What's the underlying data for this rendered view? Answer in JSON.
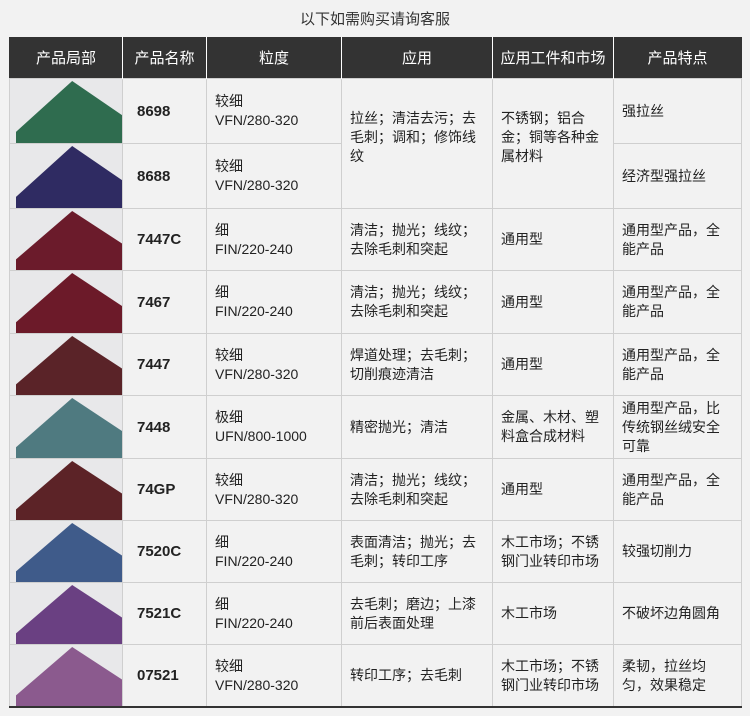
{
  "title": "以下如需购买请询客服",
  "headers": [
    "产品局部",
    "产品名称",
    "粒度",
    "应用",
    "应用工件和市场",
    "产品特点"
  ],
  "rows": [
    {
      "name": "8698",
      "grit1": "较细",
      "grit2": "VFN/280-320",
      "app": "拉丝；清洁去污；去毛刺；调和；修饰线纹",
      "market": "不锈钢；铝合金；铜等各种金属材料",
      "feature": "强拉丝",
      "color": "#2f6c4f"
    },
    {
      "name": "8688",
      "grit1": "较细",
      "grit2": "VFN/280-320",
      "feature": "经济型强拉丝",
      "color": "#2f2b62"
    },
    {
      "name": "7447C",
      "grit1": "细",
      "grit2": "FIN/220-240",
      "app": "清洁；抛光；线纹；去除毛刺和突起",
      "market": "通用型",
      "feature": "通用型产品，全能产品",
      "color": "#6b1b2b"
    },
    {
      "name": "7467",
      "grit1": "细",
      "grit2": "FIN/220-240",
      "app": "清洁；抛光；线纹；去除毛刺和突起",
      "market": "通用型",
      "feature": "通用型产品，全能产品",
      "color": "#6c1a29"
    },
    {
      "name": "7447",
      "grit1": "较细",
      "grit2": "VFN/280-320",
      "app": "焊道处理；去毛刺；切削痕迹清洁",
      "market": "通用型",
      "feature": "通用型产品，全能产品",
      "color": "#5a2328"
    },
    {
      "name": "7448",
      "grit1": "极细",
      "grit2": "UFN/800-1000",
      "app": "精密抛光；清洁",
      "market": "金属、木材、塑料盒合成材料",
      "feature": "通用型产品，比传统钢丝绒安全可靠",
      "color": "#4f7a80"
    },
    {
      "name": "74GP",
      "grit1": "较细",
      "grit2": "VFN/280-320",
      "app": "清洁；抛光；线纹；去除毛刺和突起",
      "market": "通用型",
      "feature": "通用型产品，全能产品",
      "color": "#5c2327"
    },
    {
      "name": "7520C",
      "grit1": "细",
      "grit2": "FIN/220-240",
      "app": "表面清洁；抛光；去毛刺；转印工序",
      "market": "木工市场；不锈钢门业转印市场",
      "feature": "较强切削力",
      "color": "#3f5b8a"
    },
    {
      "name": "7521C",
      "grit1": "细",
      "grit2": "FIN/220-240",
      "app": "去毛刺；磨边；上漆前后表面处理",
      "market": "木工市场",
      "feature": "不破坏边角圆角",
      "color": "#6a4082"
    },
    {
      "name": "07521",
      "grit1": "较细",
      "grit2": "VFN/280-320",
      "app": "转印工序；去毛刺",
      "market": "木工市场；不锈钢门业转印市场",
      "feature": "柔韧，拉丝均匀，效果稳定",
      "color": "#8b5a8e"
    }
  ]
}
